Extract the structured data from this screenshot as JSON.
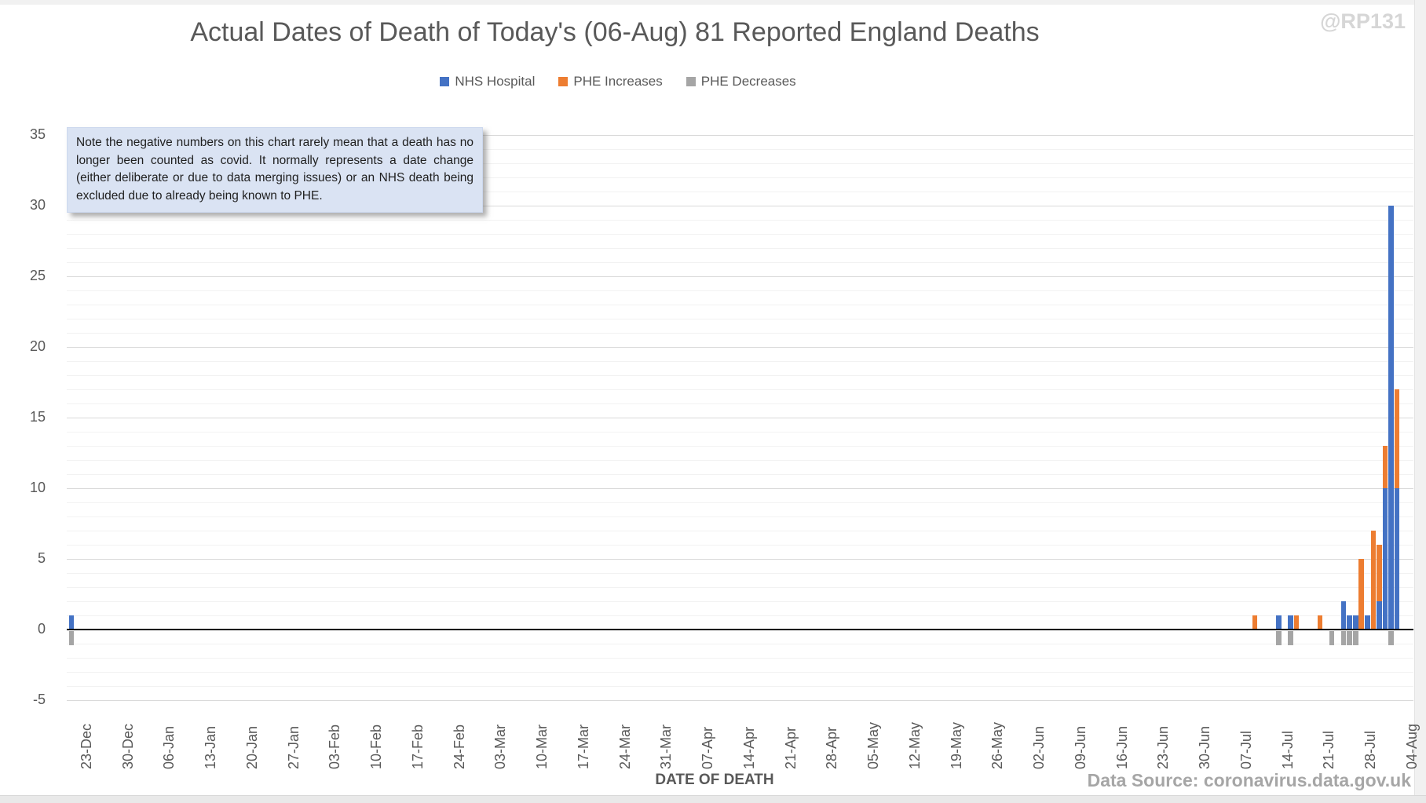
{
  "page": {
    "watermark": "@RP131",
    "data_source": "Data Source: coronavirus.data.gov.uk"
  },
  "chart_data": {
    "type": "bar",
    "subtype": "stacked-columns-with-negatives",
    "title": "Actual Dates of Death of Today's (06-Aug) 81 Reported England Deaths",
    "xlabel": "DATE OF DEATH",
    "ylabel": "",
    "ylim": [
      -5,
      35
    ],
    "y_ticks": [
      35,
      30,
      25,
      20,
      15,
      10,
      5,
      0,
      -5
    ],
    "y_major_step": 5,
    "grid": "minor horizontal every 1, major every 5",
    "legend_position": "top-center",
    "note": "Note the negative numbers on this chart rarely mean that a death has no longer been counted as covid. It normally represents a date change (either deliberate or due to data merging issues) or an NHS death being excluded due to already being known to PHE.",
    "x_tick_labels": [
      "23-Dec",
      "30-Dec",
      "06-Jan",
      "13-Jan",
      "20-Jan",
      "27-Jan",
      "03-Feb",
      "10-Feb",
      "17-Feb",
      "24-Feb",
      "03-Mar",
      "10-Mar",
      "17-Mar",
      "24-Mar",
      "31-Mar",
      "07-Apr",
      "14-Apr",
      "21-Apr",
      "28-Apr",
      "05-May",
      "12-May",
      "19-May",
      "26-May",
      "02-Jun",
      "09-Jun",
      "16-Jun",
      "23-Jun",
      "30-Jun",
      "07-Jul",
      "14-Jul",
      "21-Jul",
      "28-Jul",
      "04-Aug"
    ],
    "x_tick_interval_days": 7,
    "series": [
      {
        "name": "NHS Hospital",
        "color": "#4472C4"
      },
      {
        "name": "PHE Increases",
        "color": "#ED7D31"
      },
      {
        "name": "PHE Decreases",
        "color": "#A5A5A5"
      }
    ],
    "points": [
      {
        "date": "23-Dec",
        "day": 0,
        "nhs": 1,
        "phe_inc": 0,
        "phe_dec": -1
      },
      {
        "date": "11-Jul",
        "day": 200,
        "nhs": 0,
        "phe_inc": 1,
        "phe_dec": 0
      },
      {
        "date": "15-Jul",
        "day": 204,
        "nhs": 1,
        "phe_inc": 0,
        "phe_dec": -1
      },
      {
        "date": "17-Jul",
        "day": 206,
        "nhs": 1,
        "phe_inc": 0,
        "phe_dec": -1
      },
      {
        "date": "18-Jul",
        "day": 207,
        "nhs": 0,
        "phe_inc": 1,
        "phe_dec": 0
      },
      {
        "date": "22-Jul",
        "day": 211,
        "nhs": 0,
        "phe_inc": 1,
        "phe_dec": 0
      },
      {
        "date": "24-Jul",
        "day": 213,
        "nhs": 0,
        "phe_inc": 0,
        "phe_dec": -1
      },
      {
        "date": "26-Jul",
        "day": 215,
        "nhs": 2,
        "phe_inc": 0,
        "phe_dec": -1
      },
      {
        "date": "27-Jul",
        "day": 216,
        "nhs": 1,
        "phe_inc": 0,
        "phe_dec": -1
      },
      {
        "date": "28-Jul",
        "day": 217,
        "nhs": 1,
        "phe_inc": 0,
        "phe_dec": -1
      },
      {
        "date": "29-Jul",
        "day": 218,
        "nhs": 0,
        "phe_inc": 5,
        "phe_dec": 0
      },
      {
        "date": "30-Jul",
        "day": 219,
        "nhs": 1,
        "phe_inc": 0,
        "phe_dec": 0
      },
      {
        "date": "31-Jul",
        "day": 220,
        "nhs": 0,
        "phe_inc": 7,
        "phe_dec": 0
      },
      {
        "date": "01-Aug",
        "day": 221,
        "nhs": 2,
        "phe_inc": 4,
        "phe_dec": 0
      },
      {
        "date": "02-Aug",
        "day": 222,
        "nhs": 10,
        "phe_inc": 3,
        "phe_dec": 0
      },
      {
        "date": "03-Aug",
        "day": 223,
        "nhs": 30,
        "phe_inc": 0,
        "phe_dec": -1
      },
      {
        "date": "04-Aug",
        "day": 224,
        "nhs": 10,
        "phe_inc": 7,
        "phe_dec": 0
      }
    ]
  }
}
